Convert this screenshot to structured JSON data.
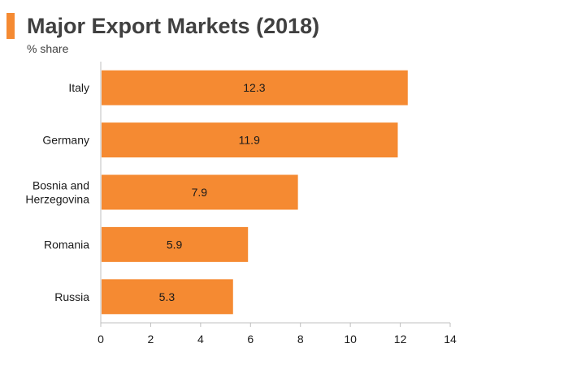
{
  "header": {
    "title": "Major Export Markets (2018)",
    "subtitle": "% share",
    "accent_color": "#F58A32"
  },
  "chart_data": {
    "type": "bar",
    "orientation": "horizontal",
    "title": "Major Export Markets (2018)",
    "subtitle": "% share",
    "categories": [
      "Italy",
      "Germany",
      "Bosnia and Herzegovina",
      "Romania",
      "Russia"
    ],
    "category_lines": [
      [
        "Italy"
      ],
      [
        "Germany"
      ],
      [
        "Bosnia and",
        "Herzegovina"
      ],
      [
        "Romania"
      ],
      [
        "Russia"
      ]
    ],
    "values": [
      12.3,
      11.9,
      7.9,
      5.9,
      5.3
    ],
    "data_labels": [
      "12.3",
      "11.9",
      "7.9",
      "5.9",
      "5.3"
    ],
    "xlim": [
      0,
      14
    ],
    "xticks": [
      0,
      2,
      4,
      6,
      8,
      10,
      12,
      14
    ],
    "xlabel": "",
    "ylabel": "",
    "grid": false,
    "legend": false,
    "bar_color": "#F58A32"
  }
}
